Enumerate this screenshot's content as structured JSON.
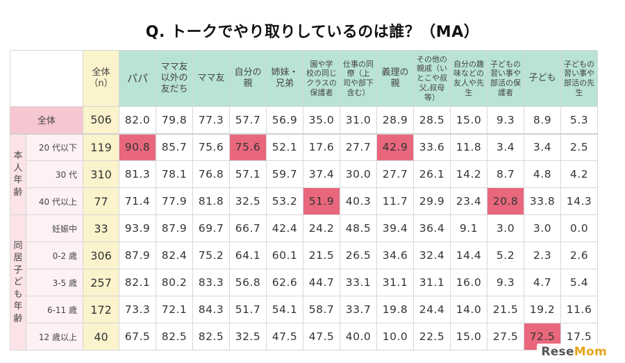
{
  "title": "Q. トークでやり取りしているのは誰？（MA）",
  "n_header": [
    "全体",
    "（n）"
  ],
  "columns": [
    {
      "lines": [
        "パパ"
      ],
      "size": "big"
    },
    {
      "lines": [
        "ママ友",
        "以外の",
        "友だち"
      ],
      "size": "mid"
    },
    {
      "lines": [
        "ママ友"
      ],
      "size": "mid"
    },
    {
      "lines": [
        "自分の",
        "親"
      ],
      "size": "mid"
    },
    {
      "lines": [
        "姉妹・",
        "兄弟"
      ],
      "size": "mid"
    },
    {
      "lines": [
        "園や学",
        "校の同じ",
        "クラスの",
        "保護者"
      ],
      "size": "sm"
    },
    {
      "lines": [
        "仕事の同",
        "僚（上",
        "司や部下",
        "含む）"
      ],
      "size": "sm"
    },
    {
      "lines": [
        "義理の",
        "親"
      ],
      "size": "mid"
    },
    {
      "lines": [
        "その他の",
        "親戚（い",
        "とこや叔",
        "父,叔母",
        "等）"
      ],
      "size": "sm"
    },
    {
      "lines": [
        "自分の趣",
        "味などの",
        "友人や先",
        "生"
      ],
      "size": "sm"
    },
    {
      "lines": [
        "子どもの",
        "習い事や",
        "部活の保",
        "護者"
      ],
      "size": "sm"
    },
    {
      "lines": [
        "子ども"
      ],
      "size": "mid"
    },
    {
      "lines": [
        "子どもの",
        "習い事や",
        "部活の先",
        "生"
      ],
      "size": "sm"
    }
  ],
  "groups": [
    {
      "label": "",
      "chars": [],
      "rows": [
        {
          "label": "全体",
          "n": "506",
          "values": [
            "82.0",
            "79.8",
            "77.3",
            "57.7",
            "56.9",
            "35.0",
            "31.0",
            "28.9",
            "28.5",
            "15.0",
            "9.3",
            "8.9",
            "5.3"
          ],
          "highlight": []
        }
      ]
    },
    {
      "label": "本人年齢",
      "chars": [
        "本",
        "人",
        "年",
        "齢"
      ],
      "rows": [
        {
          "label": "20 代以下",
          "n": "119",
          "values": [
            "90.8",
            "85.7",
            "75.6",
            "75.6",
            "52.1",
            "17.6",
            "27.7",
            "42.9",
            "33.6",
            "11.8",
            "3.4",
            "3.4",
            "2.5"
          ],
          "highlight": [
            0,
            3,
            7
          ]
        },
        {
          "label": "30 代",
          "n": "310",
          "values": [
            "81.3",
            "78.1",
            "76.8",
            "57.1",
            "59.7",
            "37.4",
            "30.0",
            "27.7",
            "26.1",
            "14.2",
            "8.7",
            "4.8",
            "4.2"
          ],
          "highlight": []
        },
        {
          "label": "40 代以上",
          "n": "77",
          "values": [
            "71.4",
            "77.9",
            "81.8",
            "32.5",
            "53.2",
            "51.9",
            "40.3",
            "11.7",
            "29.9",
            "23.4",
            "20.8",
            "33.8",
            "14.3"
          ],
          "highlight": [
            5,
            10
          ]
        }
      ]
    },
    {
      "label": "同居子ども年齢",
      "chars": [
        "同",
        "居",
        "子",
        "ど",
        "も",
        "年",
        "齢"
      ],
      "rows": [
        {
          "label": "妊娠中",
          "n": "33",
          "values": [
            "93.9",
            "87.9",
            "69.7",
            "66.7",
            "42.4",
            "24.2",
            "48.5",
            "39.4",
            "36.4",
            "9.1",
            "3.0",
            "3.0",
            "0.0"
          ],
          "highlight": []
        },
        {
          "label": "0-2 歳",
          "n": "306",
          "values": [
            "87.9",
            "82.4",
            "75.2",
            "64.1",
            "60.1",
            "21.5",
            "26.5",
            "34.6",
            "32.4",
            "14.4",
            "5.2",
            "2.3",
            "2.6"
          ],
          "highlight": []
        },
        {
          "label": "3-5 歳",
          "n": "257",
          "values": [
            "82.1",
            "80.2",
            "83.3",
            "56.8",
            "62.6",
            "44.7",
            "33.1",
            "31.1",
            "31.1",
            "16.0",
            "9.3",
            "4.7",
            "5.4"
          ],
          "highlight": []
        },
        {
          "label": "6-11 歳",
          "n": "172",
          "values": [
            "73.3",
            "72.1",
            "84.3",
            "51.7",
            "54.1",
            "58.7",
            "33.7",
            "19.8",
            "24.4",
            "14.0",
            "21.5",
            "19.2",
            "11.6"
          ],
          "highlight": []
        },
        {
          "label": "12 歳以上",
          "n": "40",
          "values": [
            "67.5",
            "82.5",
            "82.5",
            "32.5",
            "47.5",
            "47.5",
            "40.0",
            "10.0",
            "22.5",
            "15.0",
            "27.5",
            "72.5",
            "17.5"
          ],
          "highlight": [
            11
          ]
        }
      ]
    }
  ],
  "colors": {
    "header_bg": "#b9e3d6",
    "n_bg": "#faf3cc",
    "highlight": "#e8677c",
    "label_bg": "#fbe3e8"
  },
  "logo": {
    "part1": "Rese",
    "part2": "Mom"
  }
}
